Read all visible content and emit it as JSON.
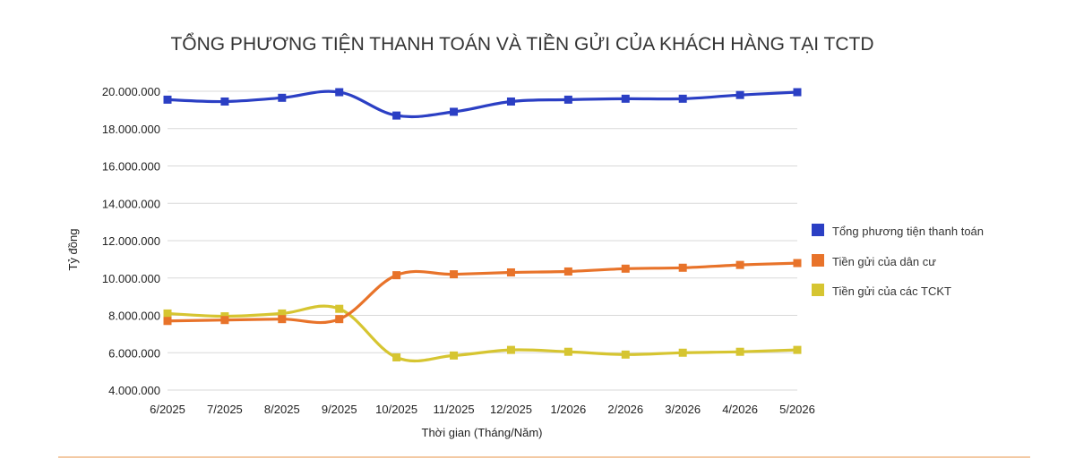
{
  "chart_data": {
    "type": "line",
    "title": "TỔNG PHƯƠNG TIỆN THANH TOÁN VÀ TIỀN GỬI CỦA KHÁCH HÀNG TẠI TCTD",
    "xlabel": "Thời gian (Tháng/Năm)",
    "ylabel": "Tỷ đồng",
    "ylim": [
      4000000,
      20000000
    ],
    "yticks": [
      {
        "value": 20000000,
        "label": "20.000.000"
      },
      {
        "value": 18000000,
        "label": "18.000.000"
      },
      {
        "value": 16000000,
        "label": "16.000.000"
      },
      {
        "value": 14000000,
        "label": "14.000.000"
      },
      {
        "value": 12000000,
        "label": "12.000.000"
      },
      {
        "value": 10000000,
        "label": "10.000.000"
      },
      {
        "value": 8000000,
        "label": "8.000.000"
      },
      {
        "value": 6000000,
        "label": "6.000.000"
      },
      {
        "value": 4000000,
        "label": "4.000.000"
      }
    ],
    "categories": [
      "6/2025",
      "7/2025",
      "8/2025",
      "9/2025",
      "10/2025",
      "11/2025",
      "12/2025",
      "1/2026",
      "2/2026",
      "3/2026",
      "4/2026",
      "5/2026"
    ],
    "grid": true,
    "legend_position": "right",
    "series": [
      {
        "name": "Tổng phương tiện thanh toán",
        "color": "#2b3fc4",
        "values": [
          19550000,
          19450000,
          19650000,
          19950000,
          18700000,
          18900000,
          19450000,
          19550000,
          19600000,
          19600000,
          19800000,
          19950000
        ]
      },
      {
        "name": "Tiền gửi của dân cư",
        "color": "#e8732a",
        "values": [
          7700000,
          7750000,
          7800000,
          7800000,
          10150000,
          10200000,
          10300000,
          10350000,
          10500000,
          10550000,
          10700000,
          10800000
        ]
      },
      {
        "name": "Tiền gửi của các TCKT",
        "color": "#d6c531",
        "values": [
          8100000,
          7950000,
          8100000,
          8350000,
          5750000,
          5850000,
          6150000,
          6050000,
          5900000,
          6000000,
          6050000,
          6150000
        ]
      }
    ]
  },
  "decor": {
    "baseline_color": "#f3c9a3"
  }
}
